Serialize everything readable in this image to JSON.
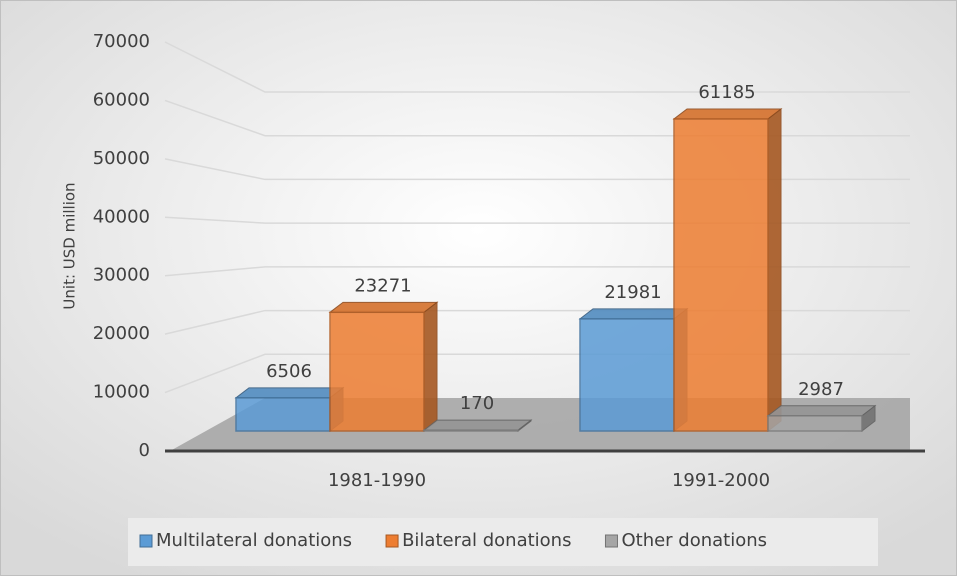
{
  "chart_data": {
    "type": "bar3d",
    "y_label": "Unit: USD million",
    "categories": [
      "1981-1990",
      "1991-2000"
    ],
    "series": [
      {
        "name": "Multilateral donations",
        "color": "#5b9bd5",
        "values": [
          6506,
          21981
        ]
      },
      {
        "name": "Bilateral donations",
        "color": "#ed7d31",
        "values": [
          23271,
          61185
        ]
      },
      {
        "name": "Other donations",
        "color": "#a5a5a5",
        "values": [
          170,
          2987
        ]
      }
    ],
    "ylim": [
      0,
      70000
    ],
    "yticks": [
      0,
      10000,
      20000,
      30000,
      40000,
      50000,
      60000,
      70000
    ],
    "grid": true,
    "legend": "bottom"
  }
}
